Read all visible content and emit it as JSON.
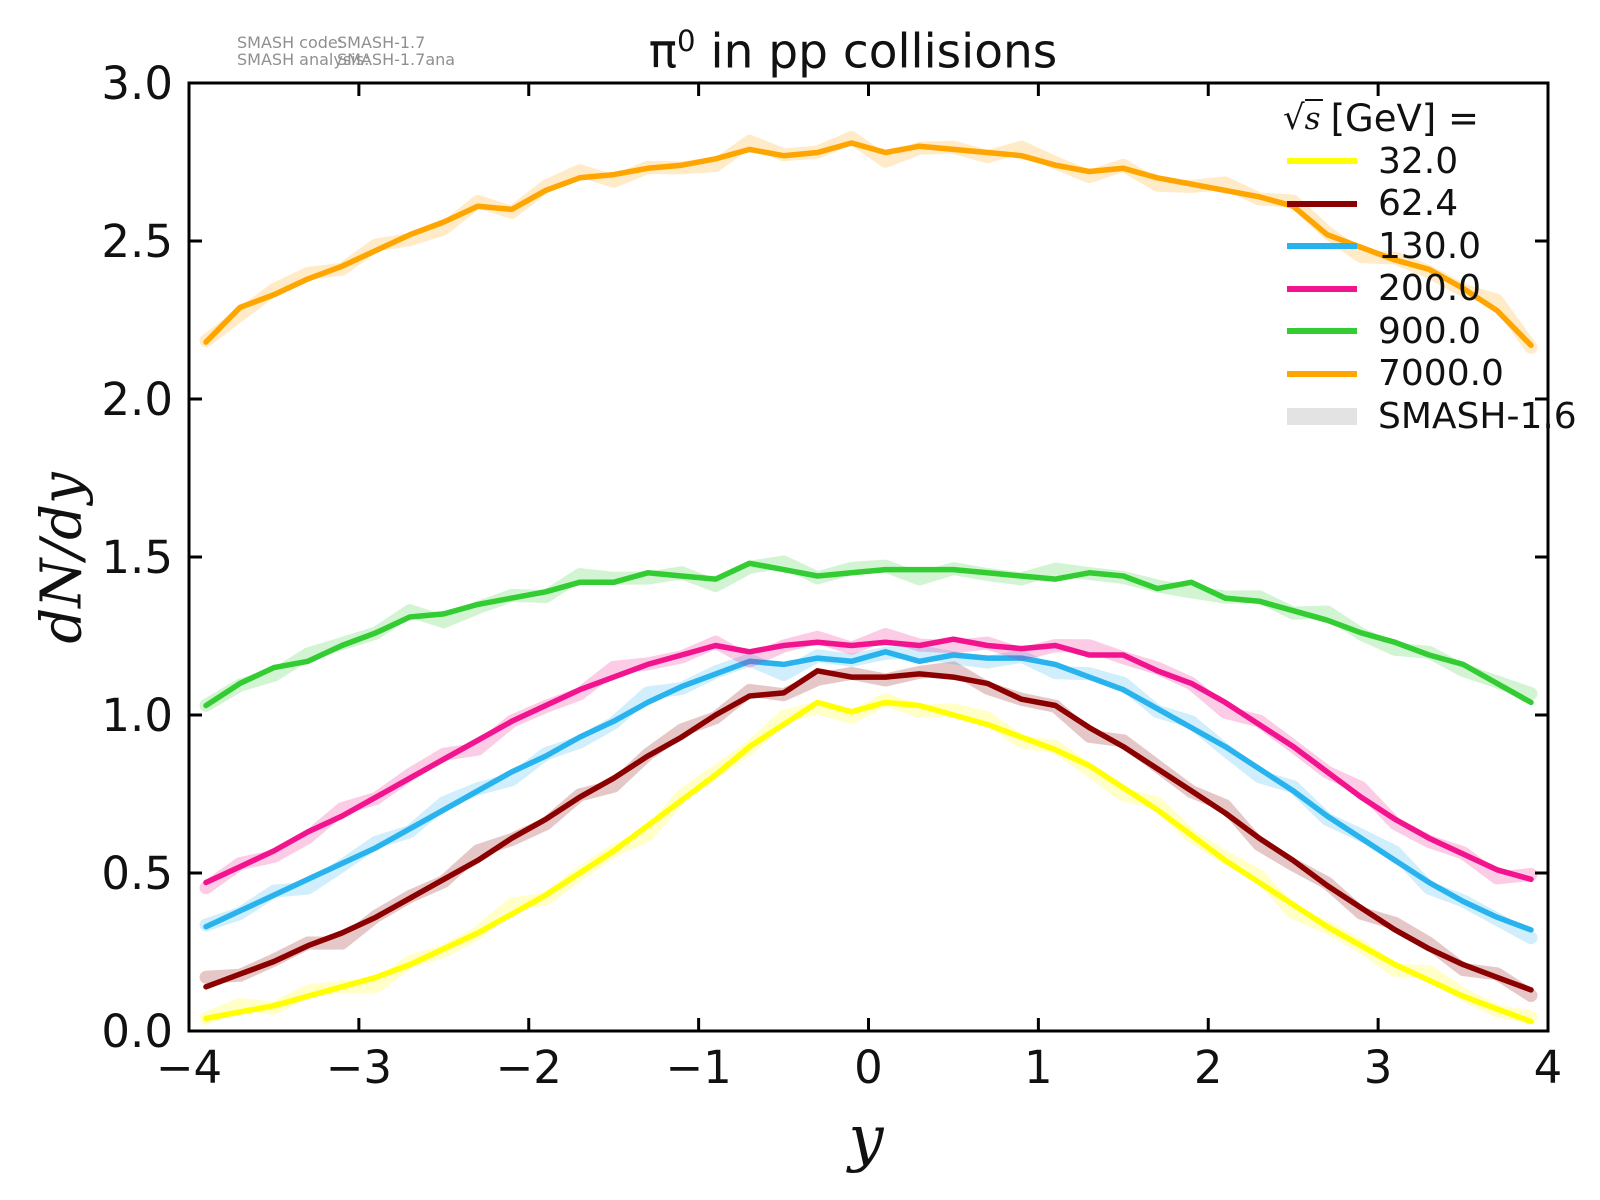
{
  "annotation": {
    "line1_label": "SMASH code:",
    "line1_value": "SMASH-1.7",
    "line2_label": "SMASH analysis:",
    "line2_value": "SMASH-1.7ana"
  },
  "title": {
    "symbol": "π",
    "superscript": "0",
    "rest": " in pp collisions"
  },
  "axes": {
    "xlabel": "y",
    "ylabel": "dN/dy"
  },
  "legend": {
    "title_sqrt": "√",
    "title_arg": "s",
    "title_rest": "[GeV] =",
    "entries": [
      {
        "label": "32.0",
        "color": "#ffff00",
        "type": "line"
      },
      {
        "label": "62.4",
        "color": "#8b0000",
        "type": "line"
      },
      {
        "label": "130.0",
        "color": "#29b3ee",
        "type": "line"
      },
      {
        "label": "200.0",
        "color": "#f2148e",
        "type": "line"
      },
      {
        "label": "900.0",
        "color": "#33cc33",
        "type": "line"
      },
      {
        "label": "7000.0",
        "color": "#ffa500",
        "type": "line"
      },
      {
        "label": "SMASH-1.6",
        "color": "#e3e3e3",
        "type": "band"
      }
    ]
  },
  "chart_data": {
    "type": "line",
    "title": "π⁰ in pp collisions",
    "xlabel": "y",
    "ylabel": "dN/dy",
    "xlim": [
      -4,
      4
    ],
    "ylim": [
      0.0,
      3.0
    ],
    "grid": false,
    "legend_position": "upper right",
    "x_start": -3.9,
    "x_step": 0.2,
    "n_points": 40,
    "xticks": [
      {
        "v": -4,
        "label": "−4"
      },
      {
        "v": -3,
        "label": "−3"
      },
      {
        "v": -2,
        "label": "−2"
      },
      {
        "v": -1,
        "label": "−1"
      },
      {
        "v": 0,
        "label": "0"
      },
      {
        "v": 1,
        "label": "1"
      },
      {
        "v": 2,
        "label": "2"
      },
      {
        "v": 3,
        "label": "3"
      },
      {
        "v": 4,
        "label": "4"
      }
    ],
    "yticks": [
      {
        "v": 0.0,
        "label": "0.0"
      },
      {
        "v": 0.5,
        "label": "0.5"
      },
      {
        "v": 1.0,
        "label": "1.0"
      },
      {
        "v": 1.5,
        "label": "1.5"
      },
      {
        "v": 2.0,
        "label": "2.0"
      },
      {
        "v": 2.5,
        "label": "2.5"
      },
      {
        "v": 3.0,
        "label": "3.0"
      }
    ],
    "series": [
      {
        "name": "32.0",
        "color": "#ffff00",
        "values": [
          0.04,
          0.06,
          0.08,
          0.11,
          0.14,
          0.17,
          0.21,
          0.26,
          0.31,
          0.37,
          0.43,
          0.5,
          0.57,
          0.65,
          0.73,
          0.81,
          0.9,
          0.97,
          1.04,
          1.01,
          1.04,
          1.03,
          1.0,
          0.97,
          0.93,
          0.89,
          0.84,
          0.77,
          0.7,
          0.62,
          0.54,
          0.47,
          0.4,
          0.33,
          0.27,
          0.21,
          0.16,
          0.11,
          0.07,
          0.03
        ]
      },
      {
        "name": "62.4",
        "color": "#8b0000",
        "values": [
          0.14,
          0.18,
          0.22,
          0.27,
          0.31,
          0.36,
          0.42,
          0.48,
          0.54,
          0.61,
          0.67,
          0.74,
          0.8,
          0.87,
          0.93,
          1.0,
          1.06,
          1.07,
          1.14,
          1.12,
          1.12,
          1.13,
          1.12,
          1.1,
          1.05,
          1.03,
          0.96,
          0.9,
          0.83,
          0.76,
          0.69,
          0.61,
          0.54,
          0.46,
          0.39,
          0.32,
          0.26,
          0.21,
          0.17,
          0.13
        ]
      },
      {
        "name": "130.0",
        "color": "#29b3ee",
        "values": [
          0.33,
          0.38,
          0.43,
          0.48,
          0.53,
          0.58,
          0.64,
          0.7,
          0.76,
          0.82,
          0.87,
          0.93,
          0.98,
          1.04,
          1.09,
          1.13,
          1.17,
          1.16,
          1.18,
          1.17,
          1.2,
          1.17,
          1.19,
          1.18,
          1.18,
          1.16,
          1.12,
          1.08,
          1.02,
          0.96,
          0.9,
          0.83,
          0.76,
          0.68,
          0.61,
          0.54,
          0.47,
          0.41,
          0.36,
          0.32
        ]
      },
      {
        "name": "200.0",
        "color": "#f2148e",
        "values": [
          0.47,
          0.52,
          0.57,
          0.63,
          0.68,
          0.74,
          0.8,
          0.86,
          0.92,
          0.98,
          1.03,
          1.08,
          1.12,
          1.16,
          1.19,
          1.22,
          1.2,
          1.22,
          1.23,
          1.22,
          1.23,
          1.22,
          1.24,
          1.22,
          1.21,
          1.22,
          1.19,
          1.19,
          1.14,
          1.1,
          1.04,
          0.97,
          0.9,
          0.82,
          0.74,
          0.67,
          0.61,
          0.56,
          0.51,
          0.48
        ]
      },
      {
        "name": "900.0",
        "color": "#33cc33",
        "values": [
          1.03,
          1.1,
          1.15,
          1.17,
          1.22,
          1.26,
          1.31,
          1.32,
          1.35,
          1.37,
          1.39,
          1.42,
          1.42,
          1.45,
          1.44,
          1.43,
          1.48,
          1.46,
          1.44,
          1.45,
          1.46,
          1.46,
          1.46,
          1.45,
          1.44,
          1.43,
          1.45,
          1.44,
          1.4,
          1.42,
          1.37,
          1.36,
          1.33,
          1.3,
          1.26,
          1.23,
          1.19,
          1.16,
          1.1,
          1.04
        ]
      },
      {
        "name": "7000.0",
        "color": "#ffa500",
        "values": [
          2.18,
          2.29,
          2.33,
          2.38,
          2.42,
          2.47,
          2.52,
          2.56,
          2.61,
          2.6,
          2.66,
          2.7,
          2.71,
          2.73,
          2.74,
          2.76,
          2.79,
          2.77,
          2.78,
          2.81,
          2.78,
          2.8,
          2.79,
          2.78,
          2.77,
          2.74,
          2.72,
          2.73,
          2.7,
          2.68,
          2.66,
          2.64,
          2.61,
          2.52,
          2.48,
          2.44,
          2.41,
          2.35,
          2.28,
          2.17
        ]
      }
    ],
    "smash16_band": {
      "label": "SMASH-1.6",
      "legend_color": "#e3e3e3",
      "opacity": 0.22,
      "width": 13,
      "wobble": 0.02
    }
  },
  "layout_colors": {
    "axis": "#000000",
    "text": "#111111",
    "annotation": "#8f8f8f",
    "background": "#ffffff"
  }
}
